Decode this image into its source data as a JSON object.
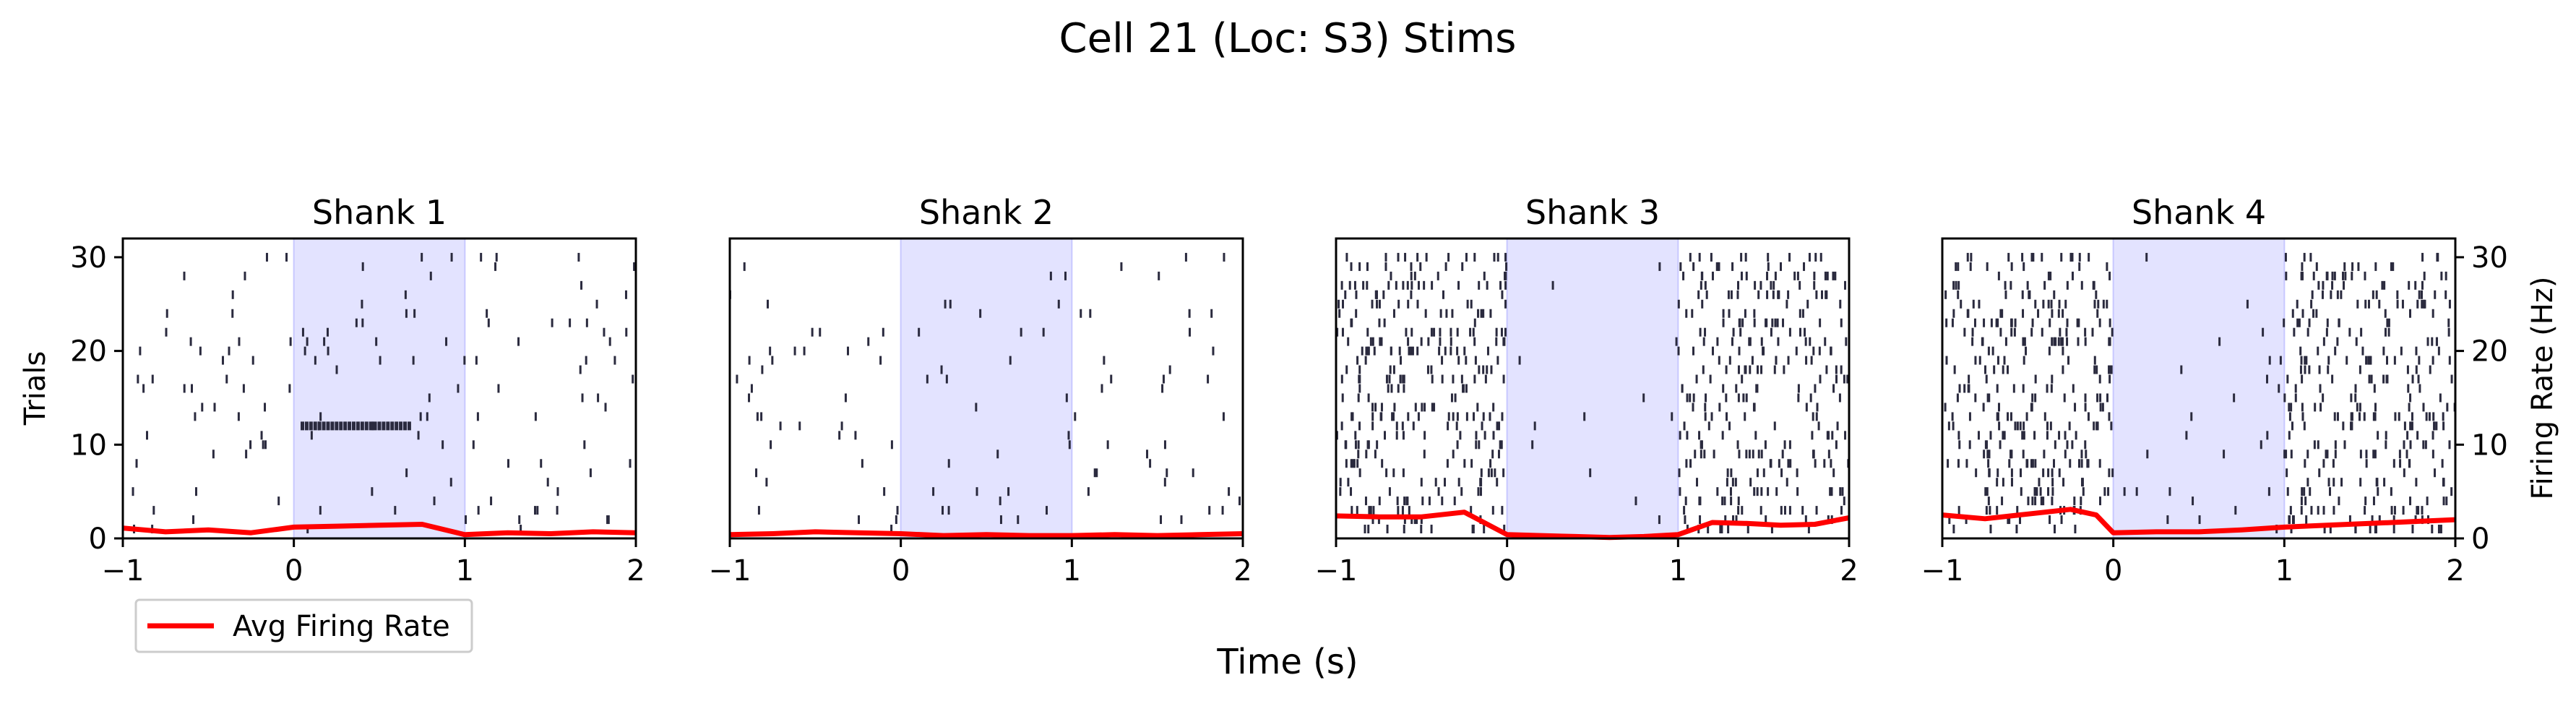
{
  "figure": {
    "suptitle": "Cell 21 (Loc: S3) Stims",
    "xlabel": "Time (s)",
    "ylabel_left": "Trials",
    "ylabel_right": "Firing Rate (Hz)",
    "legend": {
      "label": "Avg Firing Rate",
      "color": "#ff0000",
      "position": "bottom-left"
    }
  },
  "chart_data": [
    {
      "type": "scatter",
      "title": "Shank 1",
      "xlim": [
        -1,
        2
      ],
      "ylim": [
        0,
        32
      ],
      "xticks": [
        "−1",
        "0",
        "1",
        "2"
      ],
      "yticks": [
        "0",
        "10",
        "20",
        "30"
      ],
      "shade": {
        "x0": 0,
        "x1": 1,
        "color": "#e3e3ff"
      },
      "n_spikes": 130,
      "seed": 11,
      "rate_in": 1.2,
      "burst": {
        "trial": 12,
        "x0": 0.05,
        "x1": 0.7
      },
      "series": [
        {
          "name": "Avg Firing Rate",
          "x": [
            -1.0,
            -0.75,
            -0.5,
            -0.25,
            0.0,
            0.25,
            0.5,
            0.75,
            1.0,
            1.25,
            1.5,
            1.75,
            2.0
          ],
          "values": [
            1.1,
            0.7,
            0.9,
            0.6,
            1.2,
            1.3,
            1.4,
            1.5,
            0.4,
            0.6,
            0.5,
            0.7,
            0.6
          ]
        }
      ]
    },
    {
      "type": "scatter",
      "title": "Shank 2",
      "xlim": [
        -1,
        2
      ],
      "ylim": [
        0,
        32
      ],
      "xticks": [
        "−1",
        "0",
        "1",
        "2"
      ],
      "yticks": [],
      "shade": {
        "x0": 0,
        "x1": 1,
        "color": "#e3e3ff"
      },
      "n_spikes": 100,
      "seed": 23,
      "rate_in": 1.0,
      "series": [
        {
          "name": "Avg Firing Rate",
          "x": [
            -1.0,
            -0.75,
            -0.5,
            -0.25,
            0.0,
            0.25,
            0.5,
            0.75,
            1.0,
            1.25,
            1.5,
            1.75,
            2.0
          ],
          "values": [
            0.4,
            0.5,
            0.7,
            0.6,
            0.5,
            0.3,
            0.4,
            0.3,
            0.3,
            0.4,
            0.3,
            0.4,
            0.5
          ]
        }
      ]
    },
    {
      "type": "scatter",
      "title": "Shank 3",
      "xlim": [
        -1,
        2
      ],
      "ylim": [
        0,
        32
      ],
      "xticks": [
        "−1",
        "0",
        "1",
        "2"
      ],
      "yticks": [],
      "shade": {
        "x0": 0,
        "x1": 1,
        "color": "#e3e3ff"
      },
      "n_spikes": 620,
      "seed": 37,
      "rate_in": 0.05,
      "series": [
        {
          "name": "Avg Firing Rate",
          "x": [
            -1.0,
            -0.75,
            -0.5,
            -0.25,
            0.0,
            0.2,
            0.4,
            0.6,
            0.8,
            1.0,
            1.2,
            1.4,
            1.6,
            1.8,
            2.0
          ],
          "values": [
            2.4,
            2.3,
            2.3,
            2.8,
            0.4,
            0.3,
            0.2,
            0.1,
            0.2,
            0.4,
            1.7,
            1.6,
            1.4,
            1.5,
            2.2
          ]
        }
      ]
    },
    {
      "type": "scatter",
      "title": "Shank 4",
      "xlim": [
        -1,
        2
      ],
      "ylim": [
        0,
        32
      ],
      "xticks": [
        "−1",
        "0",
        "1",
        "2"
      ],
      "yticks": [],
      "right_yticks": [
        "0",
        "10",
        "20",
        "30"
      ],
      "right_ylim": [
        0,
        32
      ],
      "shade": {
        "x0": 0,
        "x1": 1,
        "color": "#e3e3ff"
      },
      "n_spikes": 640,
      "seed": 53,
      "rate_in": 0.12,
      "series": [
        {
          "name": "Avg Firing Rate",
          "x": [
            -1.0,
            -0.75,
            -0.5,
            -0.25,
            -0.1,
            0.0,
            0.25,
            0.5,
            0.75,
            1.0,
            1.25,
            1.5,
            1.75,
            2.0
          ],
          "values": [
            2.5,
            2.1,
            2.6,
            3.1,
            2.5,
            0.6,
            0.7,
            0.7,
            0.9,
            1.2,
            1.4,
            1.6,
            1.8,
            2.0
          ]
        }
      ]
    }
  ]
}
